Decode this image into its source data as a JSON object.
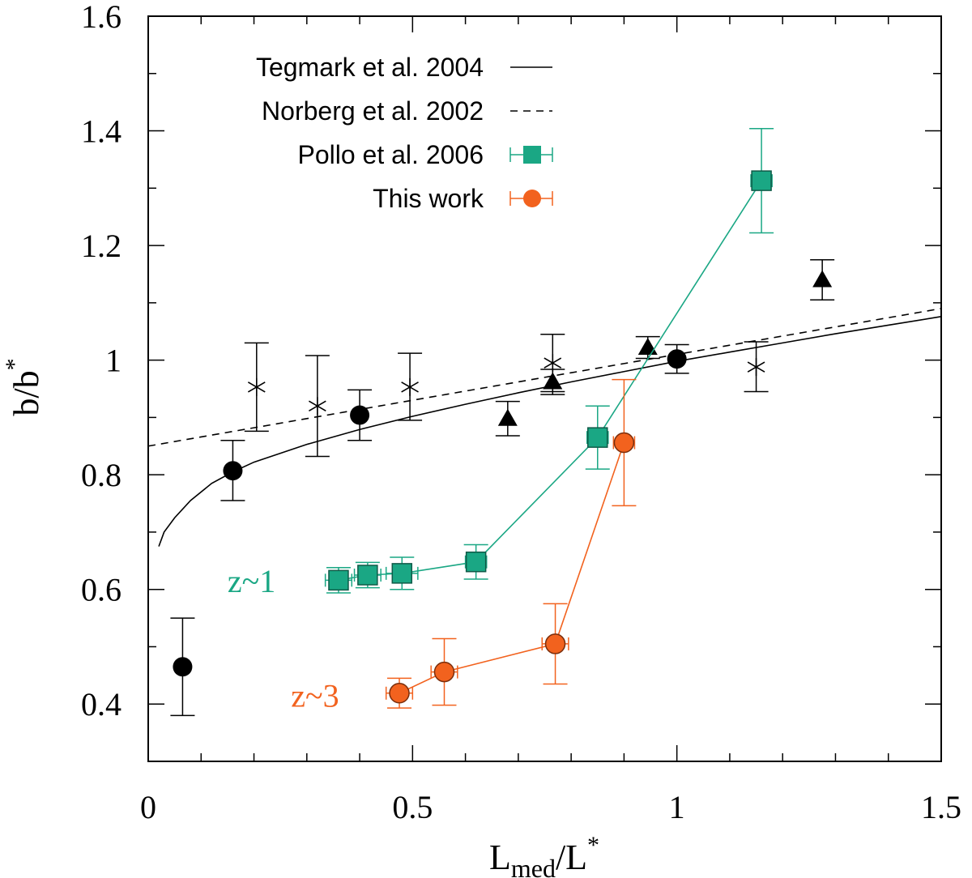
{
  "chart_data": {
    "type": "scatter",
    "title": "",
    "xlabel": "L",
    "xlabel_sub": "med",
    "xlabel_tail": "/L",
    "xlabel_sup": "*",
    "ylabel": "b/b",
    "ylabel_sup": "*",
    "xlim": [
      0,
      1.5
    ],
    "ylim": [
      0.3,
      1.6
    ],
    "x_major_ticks": [
      0,
      0.5,
      1,
      1.5
    ],
    "x_tick_labels": [
      "0",
      "0.5",
      "1",
      "1.5"
    ],
    "x_minor_step": 0.1,
    "y_major_ticks": [
      0.4,
      0.6,
      0.8,
      1.0,
      1.2,
      1.4,
      1.6
    ],
    "y_tick_labels": [
      "0.4",
      "0.6",
      "0.8",
      "1",
      "1.2",
      "1.4",
      "1.6"
    ],
    "y_minor_step": 0.1,
    "colors": {
      "pollo": "#1aa784",
      "pollo_edge": "#0f5a47",
      "this_work": "#f2621e",
      "this_work_edge": "#7a2e0c",
      "black": "#000000"
    },
    "legend": [
      {
        "label": "Tegmark et al. 2004",
        "style": "solid-line"
      },
      {
        "label": "Norberg et al. 2002",
        "style": "dashed-line"
      },
      {
        "label": "Pollo et al. 2006",
        "style": "green-square"
      },
      {
        "label": "This work",
        "style": "orange-circle"
      }
    ],
    "annotations": [
      {
        "text": "z~1",
        "x": 0.15,
        "y": 0.615,
        "color": "#1aa784"
      },
      {
        "text": "z~3",
        "x": 0.27,
        "y": 0.415,
        "color": "#f2621e"
      }
    ],
    "series": [
      {
        "name": "Tegmark et al. 2004",
        "style": "solid-line",
        "x": [
          0.02,
          0.03,
          0.05,
          0.08,
          0.12,
          0.16,
          0.2,
          0.3,
          0.4,
          0.5,
          0.6,
          0.7,
          0.8,
          0.9,
          1.0,
          1.1,
          1.2,
          1.3,
          1.4,
          1.5
        ],
        "y": [
          0.675,
          0.7,
          0.725,
          0.755,
          0.785,
          0.805,
          0.822,
          0.853,
          0.879,
          0.902,
          0.923,
          0.943,
          0.962,
          0.98,
          0.998,
          1.014,
          1.03,
          1.046,
          1.061,
          1.076
        ]
      },
      {
        "name": "Norberg et al. 2002",
        "style": "dashed-line",
        "x": [
          0.0,
          0.1,
          0.2,
          0.3,
          0.4,
          0.5,
          0.6,
          0.7,
          0.8,
          0.9,
          1.0,
          1.1,
          1.2,
          1.3,
          1.4,
          1.5
        ],
        "y": [
          0.85,
          0.866,
          0.882,
          0.898,
          0.914,
          0.93,
          0.946,
          0.962,
          0.978,
          0.994,
          1.01,
          1.026,
          1.042,
          1.058,
          1.074,
          1.09
        ]
      },
      {
        "name": "Black circles",
        "style": "black-circle",
        "points": [
          {
            "x": 0.065,
            "y": 0.465,
            "lo": 0.38,
            "hi": 0.55
          },
          {
            "x": 0.16,
            "y": 0.807,
            "lo": 0.755,
            "hi": 0.86
          },
          {
            "x": 0.4,
            "y": 0.904,
            "lo": 0.86,
            "hi": 0.948
          },
          {
            "x": 1.0,
            "y": 1.002,
            "lo": 0.977,
            "hi": 1.027
          }
        ]
      },
      {
        "name": "Black crosses",
        "style": "black-star",
        "points": [
          {
            "x": 0.205,
            "y": 0.953,
            "lo": 0.876,
            "hi": 1.03
          },
          {
            "x": 0.32,
            "y": 0.92,
            "lo": 0.832,
            "hi": 1.008
          },
          {
            "x": 0.495,
            "y": 0.953,
            "lo": 0.895,
            "hi": 1.012
          },
          {
            "x": 0.765,
            "y": 0.995,
            "lo": 0.945,
            "hi": 1.045
          },
          {
            "x": 1.15,
            "y": 0.988,
            "lo": 0.945,
            "hi": 1.032
          }
        ]
      },
      {
        "name": "Black triangles",
        "style": "black-triangle",
        "points": [
          {
            "x": 0.68,
            "y": 0.898,
            "lo": 0.868,
            "hi": 0.928
          },
          {
            "x": 0.765,
            "y": 0.962,
            "lo": 0.94,
            "hi": 0.984
          },
          {
            "x": 0.945,
            "y": 1.022,
            "lo": 1.003,
            "hi": 1.041
          },
          {
            "x": 1.275,
            "y": 1.14,
            "lo": 1.105,
            "hi": 1.175
          }
        ]
      },
      {
        "name": "Pollo et al. 2006",
        "style": "green-square",
        "connected": true,
        "points": [
          {
            "x": 0.36,
            "y": 0.616,
            "lo": 0.594,
            "hi": 0.638,
            "xerr": 0.025
          },
          {
            "x": 0.415,
            "y": 0.625,
            "lo": 0.603,
            "hi": 0.647,
            "xerr": 0.025
          },
          {
            "x": 0.48,
            "y": 0.628,
            "lo": 0.6,
            "hi": 0.656,
            "xerr": 0.03
          },
          {
            "x": 0.62,
            "y": 0.648,
            "lo": 0.618,
            "hi": 0.678,
            "xerr": 0.02
          },
          {
            "x": 0.85,
            "y": 0.865,
            "lo": 0.81,
            "hi": 0.92,
            "xerr": 0.02
          },
          {
            "x": 1.16,
            "y": 1.313,
            "lo": 1.222,
            "hi": 1.404,
            "xerr": 0.02
          }
        ]
      },
      {
        "name": "This work",
        "style": "orange-circle",
        "connected": true,
        "points": [
          {
            "x": 0.475,
            "y": 0.419,
            "lo": 0.393,
            "hi": 0.445,
            "xerr": 0.025
          },
          {
            "x": 0.56,
            "y": 0.456,
            "lo": 0.398,
            "hi": 0.514,
            "xerr": 0.025
          },
          {
            "x": 0.77,
            "y": 0.505,
            "lo": 0.435,
            "hi": 0.575,
            "xerr": 0.025
          },
          {
            "x": 0.9,
            "y": 0.856,
            "lo": 0.746,
            "hi": 0.966,
            "xerr": 0.02
          }
        ]
      }
    ]
  }
}
